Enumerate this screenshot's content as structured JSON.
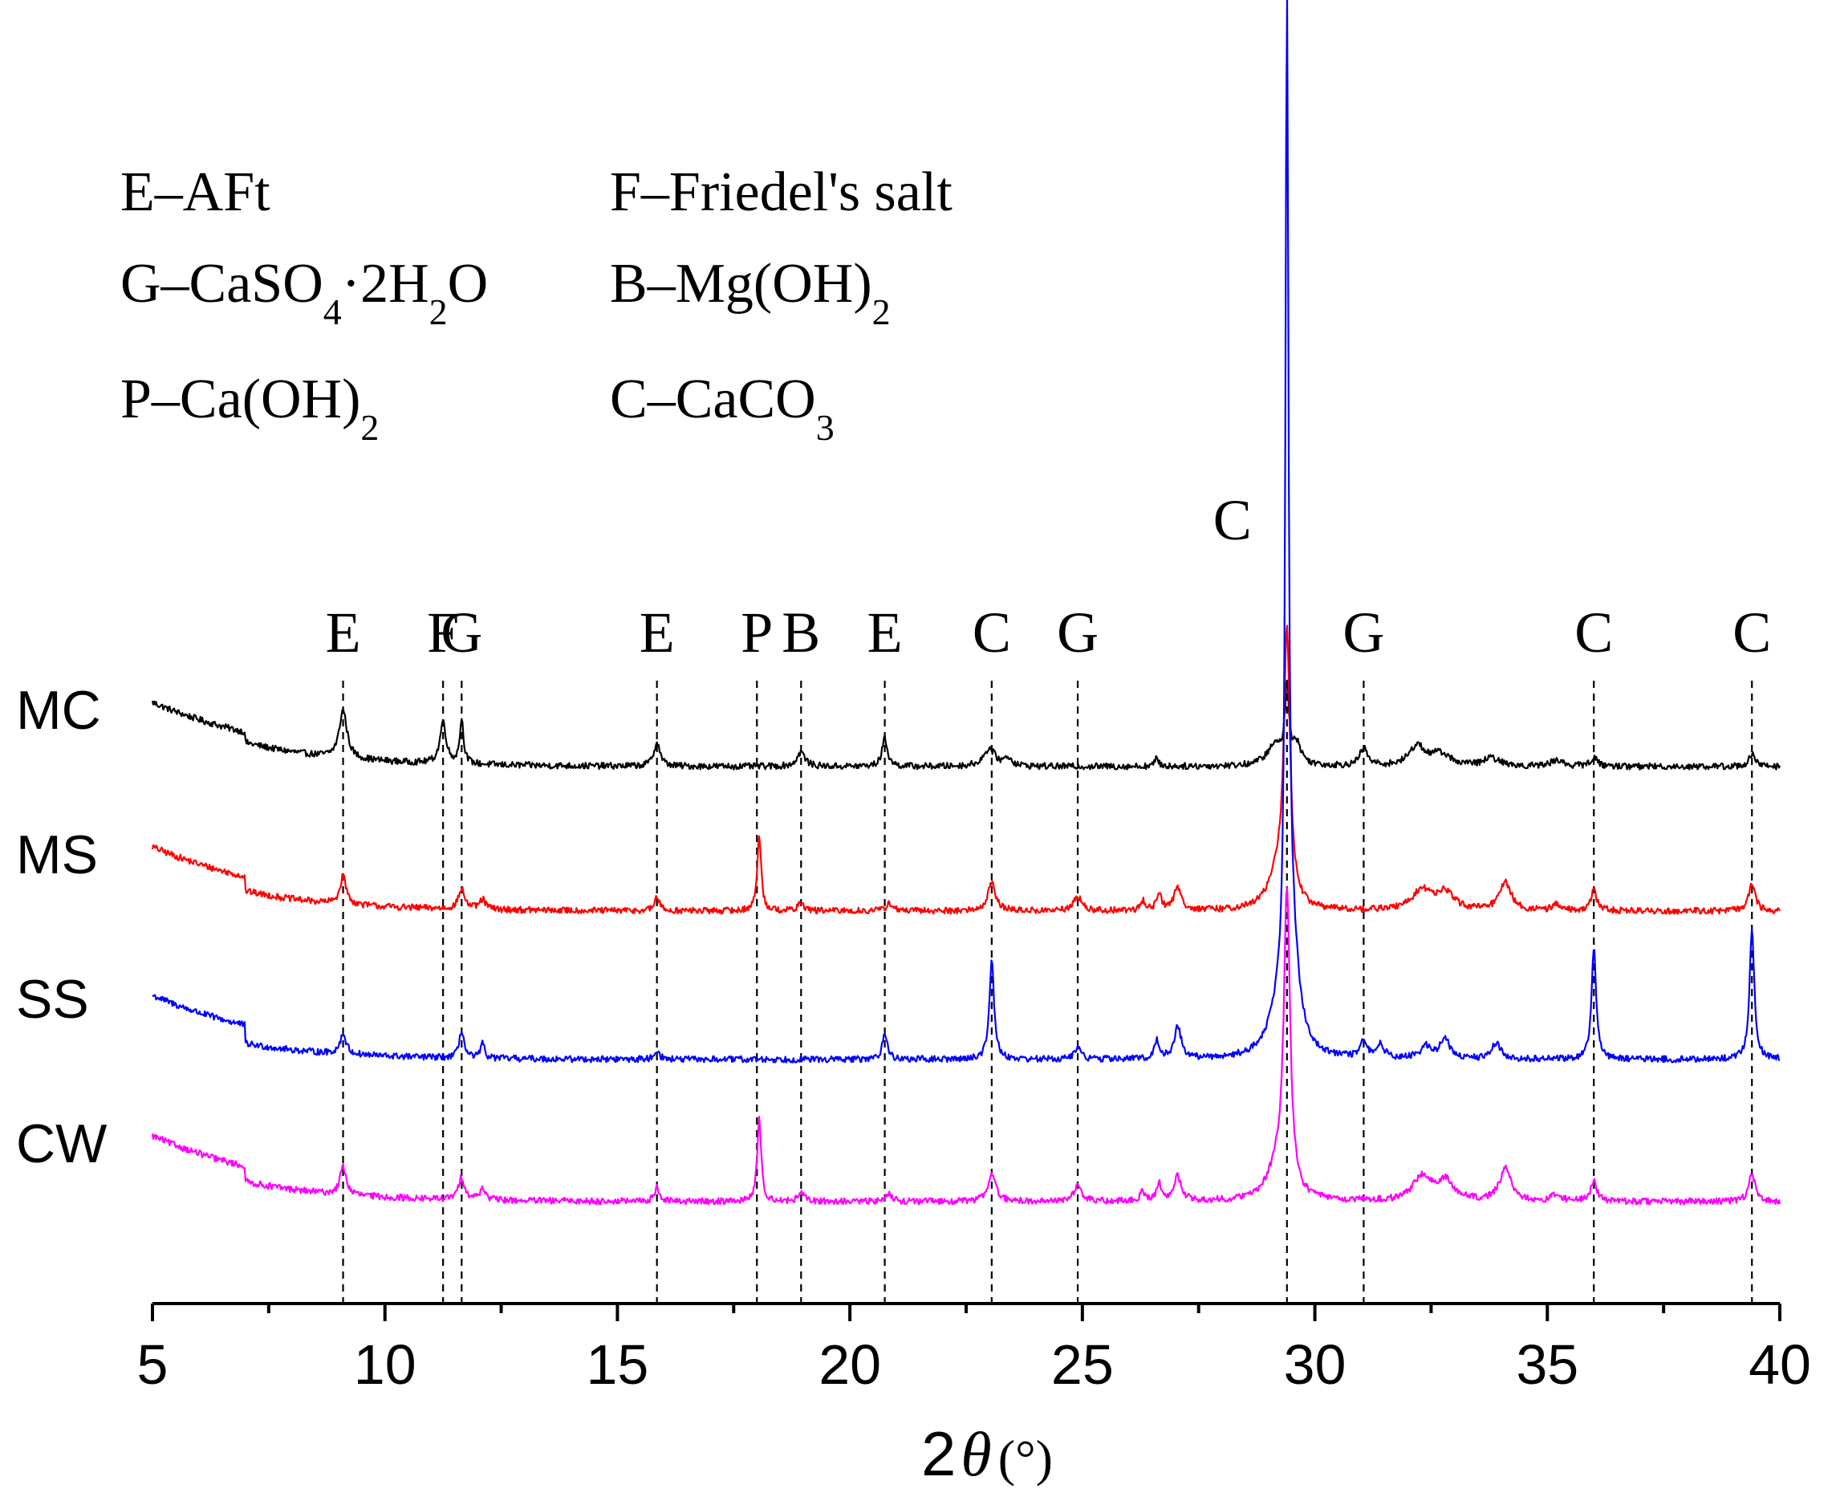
{
  "chart_data": {
    "type": "line",
    "title": "",
    "xlabel": "2θ (°)",
    "xlabel_parts": {
      "prefix": "2",
      "symbol": "θ",
      "unit": "(°)"
    },
    "ylabel": "",
    "xlim": [
      5,
      40
    ],
    "x_ticks": [
      5,
      10,
      15,
      20,
      25,
      30,
      35,
      40
    ],
    "x_tick_labels": [
      "5",
      "10",
      "15",
      "20",
      "25",
      "30",
      "35",
      "40"
    ],
    "legend_key": [
      {
        "code": "E",
        "phase": "AFt",
        "text": "E–AFt"
      },
      {
        "code": "F",
        "phase": "Friedel's salt",
        "text": "F–Friedel's salt"
      },
      {
        "code": "G",
        "phase": "CaSO4·2H2O",
        "text": "G–CaSO",
        "sub1": "4",
        "mid": "·2H",
        "sub2": "2",
        "tail": "O"
      },
      {
        "code": "B",
        "phase": "Mg(OH)2",
        "text": "B–Mg(OH)",
        "sub1": "2"
      },
      {
        "code": "P",
        "phase": "Ca(OH)2",
        "text": "P–Ca(OH)",
        "sub1": "2"
      },
      {
        "code": "C",
        "phase": "CaCO3",
        "text": "C–CaCO",
        "sub1": "3"
      }
    ],
    "peak_markers": [
      {
        "label": "E",
        "x": 9.1
      },
      {
        "label": "F",
        "x": 11.25
      },
      {
        "label": "G",
        "x": 11.65
      },
      {
        "label": "E",
        "x": 15.85
      },
      {
        "label": "P",
        "x": 18.0
      },
      {
        "label": "B",
        "x": 18.95
      },
      {
        "label": "E",
        "x": 20.75
      },
      {
        "label": "C",
        "x": 23.05
      },
      {
        "label": "G",
        "x": 24.9
      },
      {
        "label": "C",
        "x": 29.4
      },
      {
        "label": "G",
        "x": 31.05
      },
      {
        "label": "C",
        "x": 36.0
      },
      {
        "label": "C",
        "x": 39.4
      }
    ],
    "series": [
      {
        "name": "MC",
        "color": "#000000",
        "baseline": {
          "start": 100,
          "end": 20,
          "decay": 1.6,
          "floor": 30
        },
        "noise": 4,
        "peaks": [
          [
            9.1,
            60,
            0.1
          ],
          [
            11.25,
            52,
            0.08
          ],
          [
            11.65,
            55,
            0.05
          ],
          [
            15.85,
            30,
            0.08
          ],
          [
            18.95,
            18,
            0.1
          ],
          [
            20.75,
            35,
            0.07
          ],
          [
            23.0,
            22,
            0.15
          ],
          [
            23.4,
            10,
            0.1
          ],
          [
            26.6,
            10,
            0.05
          ],
          [
            29.15,
            25,
            0.22
          ],
          [
            29.4,
            90,
            0.05
          ],
          [
            29.6,
            25,
            0.12
          ],
          [
            31.05,
            22,
            0.1
          ],
          [
            32.2,
            25,
            0.2
          ],
          [
            32.7,
            15,
            0.25
          ],
          [
            33.8,
            10,
            0.2
          ],
          [
            35.2,
            8,
            0.15
          ],
          [
            36.0,
            10,
            0.1
          ],
          [
            39.4,
            15,
            0.08
          ]
        ]
      },
      {
        "name": "MS",
        "color": "#ff0000",
        "baseline": {
          "start": 95,
          "end": 15,
          "decay": 1.6,
          "floor": 25
        },
        "noise": 4,
        "peaks": [
          [
            9.1,
            35,
            0.08
          ],
          [
            11.65,
            25,
            0.08
          ],
          [
            12.1,
            12,
            0.08
          ],
          [
            15.85,
            18,
            0.06
          ],
          [
            18.05,
            95,
            0.05
          ],
          [
            18.95,
            10,
            0.08
          ],
          [
            20.85,
            10,
            0.08
          ],
          [
            23.05,
            35,
            0.1
          ],
          [
            24.9,
            18,
            0.1
          ],
          [
            26.3,
            12,
            0.06
          ],
          [
            26.65,
            22,
            0.06
          ],
          [
            27.05,
            28,
            0.1
          ],
          [
            29.4,
            330,
            0.08
          ],
          [
            29.2,
            40,
            0.25
          ],
          [
            32.3,
            25,
            0.25
          ],
          [
            32.8,
            22,
            0.22
          ],
          [
            34.1,
            35,
            0.15
          ],
          [
            35.2,
            8,
            0.1
          ],
          [
            36.0,
            25,
            0.08
          ],
          [
            39.4,
            35,
            0.08
          ]
        ]
      },
      {
        "name": "SS",
        "color": "#0000ff",
        "baseline": {
          "start": 95,
          "end": 15,
          "decay": 1.6,
          "floor": 20
        },
        "noise": 4,
        "peaks": [
          [
            9.1,
            25,
            0.08
          ],
          [
            11.65,
            35,
            0.06
          ],
          [
            12.1,
            18,
            0.05
          ],
          [
            15.85,
            12,
            0.06
          ],
          [
            20.75,
            35,
            0.06
          ],
          [
            23.05,
            125,
            0.06
          ],
          [
            24.9,
            15,
            0.08
          ],
          [
            26.6,
            22,
            0.06
          ],
          [
            27.05,
            40,
            0.09
          ],
          [
            29.4,
            1200,
            0.04
          ],
          [
            29.5,
            130,
            0.18
          ],
          [
            29.2,
            40,
            0.25
          ],
          [
            31.05,
            20,
            0.08
          ],
          [
            31.4,
            18,
            0.1
          ],
          [
            32.4,
            15,
            0.15
          ],
          [
            32.8,
            25,
            0.12
          ],
          [
            33.9,
            20,
            0.12
          ],
          [
            36.0,
            140,
            0.06
          ],
          [
            39.4,
            165,
            0.06
          ]
        ]
      },
      {
        "name": "CW",
        "color": "#ff00ff",
        "baseline": {
          "start": 100,
          "end": 18,
          "decay": 1.6,
          "floor": 25
        },
        "noise": 4,
        "peaks": [
          [
            9.1,
            35,
            0.08
          ],
          [
            11.65,
            28,
            0.08
          ],
          [
            12.1,
            15,
            0.07
          ],
          [
            15.85,
            18,
            0.06
          ],
          [
            18.05,
            105,
            0.05
          ],
          [
            18.95,
            10,
            0.08
          ],
          [
            20.85,
            10,
            0.08
          ],
          [
            23.05,
            35,
            0.1
          ],
          [
            24.9,
            20,
            0.1
          ],
          [
            26.3,
            12,
            0.06
          ],
          [
            26.65,
            22,
            0.06
          ],
          [
            27.05,
            30,
            0.1
          ],
          [
            29.4,
            370,
            0.08
          ],
          [
            29.2,
            40,
            0.25
          ],
          [
            32.3,
            30,
            0.22
          ],
          [
            32.8,
            25,
            0.22
          ],
          [
            34.1,
            40,
            0.15
          ],
          [
            35.2,
            10,
            0.1
          ],
          [
            36.0,
            25,
            0.08
          ],
          [
            39.4,
            35,
            0.08
          ]
        ]
      }
    ]
  }
}
